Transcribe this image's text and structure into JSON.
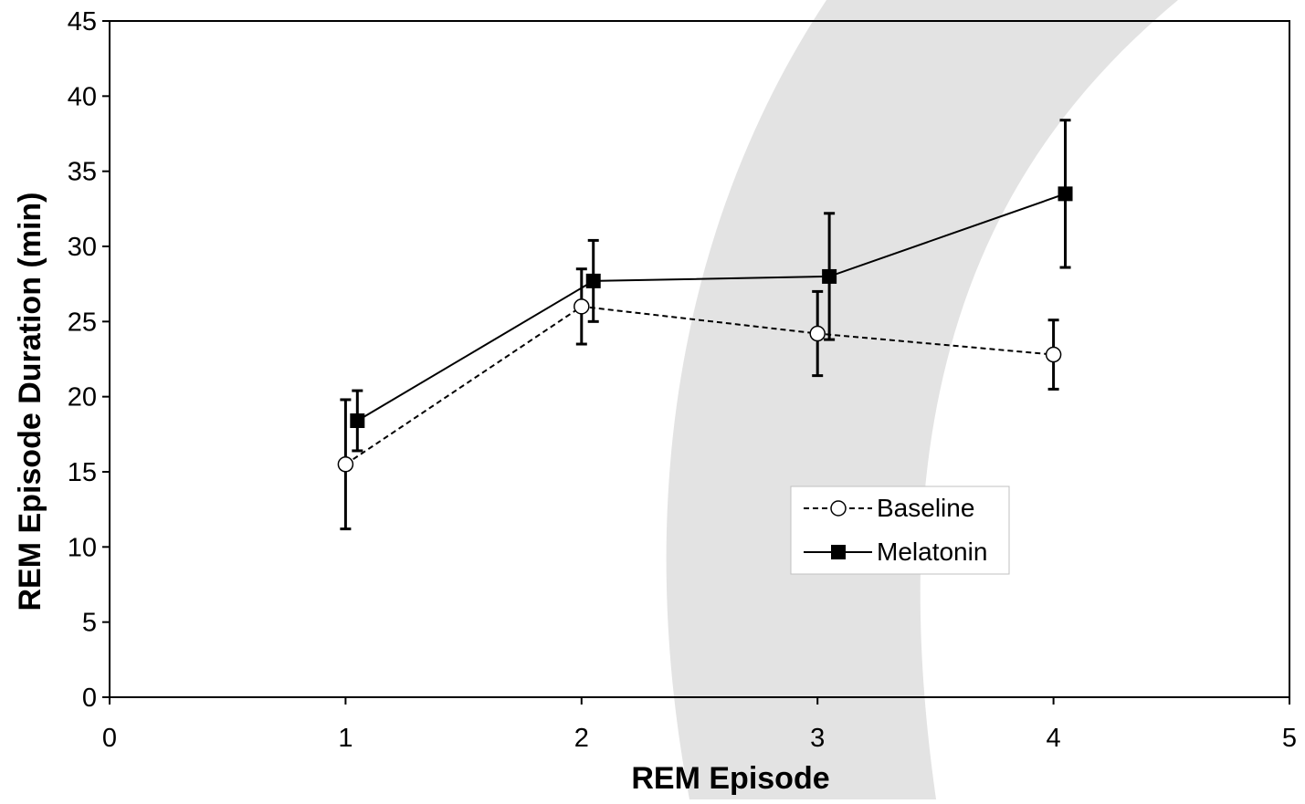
{
  "chart_data": {
    "type": "line",
    "xlabel": "REM Episode",
    "ylabel": "REM Episode Duration (min)",
    "xlim": [
      0,
      5
    ],
    "ylim": [
      0,
      45
    ],
    "x_ticks": [
      "0",
      "1",
      "2",
      "3",
      "4",
      "5"
    ],
    "y_ticks": [
      "0",
      "5",
      "10",
      "15",
      "20",
      "25",
      "30",
      "35",
      "40",
      "45"
    ],
    "grid": false,
    "legend_placement": "center-right",
    "series": [
      {
        "name": "Baseline",
        "marker": "open-circle",
        "line_style": "dashed",
        "x": [
          1,
          2,
          3,
          4
        ],
        "y": [
          15.5,
          26.0,
          24.2,
          22.8
        ],
        "error": [
          4.3,
          2.5,
          2.8,
          2.3
        ]
      },
      {
        "name": "Melatonin",
        "marker": "filled-square",
        "line_style": "solid",
        "x": [
          1.05,
          2.05,
          3.05,
          4.05
        ],
        "y": [
          18.4,
          27.7,
          28.0,
          33.5
        ],
        "error": [
          2.0,
          2.7,
          4.2,
          4.9
        ]
      }
    ],
    "colors": {
      "line": "#000000",
      "background_arc": "#e3e3e3"
    }
  }
}
